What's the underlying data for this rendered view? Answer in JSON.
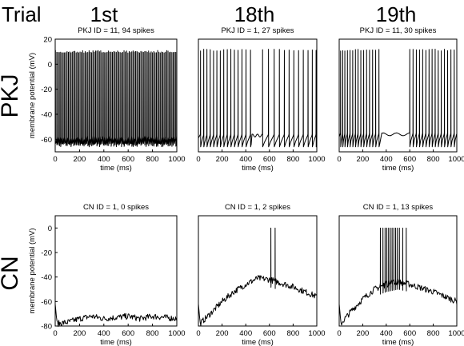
{
  "header": {
    "trial_label": "Trial",
    "columns": [
      "1st",
      "18th",
      "19th"
    ]
  },
  "rows": [
    "PKJ",
    "CN"
  ],
  "axis": {
    "xlabel": "time (ms)",
    "ylabel": "membrane potential (mV)"
  },
  "chart_data": [
    {
      "type": "line",
      "row": "PKJ",
      "column": "1st",
      "title": "PKJ ID = 11, 94 spikes",
      "xlabel": "time (ms)",
      "ylabel": "membrane potential (mV)",
      "xlim": [
        0,
        1000
      ],
      "ylim": [
        -70,
        20
      ],
      "xticks": [
        0,
        200,
        400,
        600,
        800,
        1000
      ],
      "yticks": [
        20,
        0,
        -20,
        -40,
        -60
      ],
      "spike_peak": 11,
      "trough": -66,
      "baseline": -60,
      "spike_count": 94,
      "spike_times": [],
      "pauses": []
    },
    {
      "type": "line",
      "row": "PKJ",
      "column": "18th",
      "title": "PKJ ID = 1, 27 spikes",
      "xlabel": "time (ms)",
      "ylabel": "",
      "xlim": [
        0,
        1000
      ],
      "ylim": [
        -70,
        20
      ],
      "xticks": [
        0,
        200,
        400,
        600,
        800,
        1000
      ],
      "yticks": [],
      "spike_peak": 12,
      "trough": -66,
      "baseline": -59,
      "spike_count": 27,
      "spike_times": [
        18,
        45,
        72,
        100,
        128,
        156,
        185,
        214,
        244,
        274,
        304,
        335,
        368,
        402,
        440,
        542,
        592,
        640,
        684,
        726,
        766,
        806,
        846,
        886,
        926,
        962,
        994
      ],
      "pauses": [
        [
          440,
          542
        ]
      ]
    },
    {
      "type": "line",
      "row": "PKJ",
      "column": "19th",
      "title": "PKJ ID = 11, 30 spikes",
      "xlabel": "time (ms)",
      "ylabel": "",
      "xlim": [
        0,
        1000
      ],
      "ylim": [
        -70,
        20
      ],
      "xticks": [
        0,
        200,
        400,
        600,
        800,
        1000
      ],
      "yticks": [],
      "spike_peak": 12,
      "trough": -66,
      "baseline": -58,
      "spike_count": 30,
      "spike_times": [
        12,
        30,
        48,
        70,
        92,
        115,
        138,
        160,
        184,
        208,
        233,
        258,
        284,
        310,
        338,
        600,
        628,
        656,
        683,
        710,
        737,
        764,
        790,
        816,
        842,
        868,
        895,
        922,
        950,
        978
      ],
      "pauses": [
        [
          338,
          600
        ]
      ]
    },
    {
      "type": "line",
      "row": "CN",
      "column": "1st",
      "title": "CN ID = 1, 0 spikes",
      "xlabel": "time (ms)",
      "ylabel": "membrane potential (mV)",
      "xlim": [
        0,
        1000
      ],
      "ylim": [
        -80,
        10
      ],
      "xticks": [
        0,
        200,
        400,
        600,
        800,
        1000
      ],
      "yticks": [
        0,
        -20,
        -40,
        -60,
        -80
      ],
      "spike_count": 0,
      "spike_times": [],
      "envelope": [
        [
          0,
          -62
        ],
        [
          15,
          -78
        ],
        [
          100,
          -77
        ],
        [
          200,
          -74
        ],
        [
          300,
          -72
        ],
        [
          400,
          -74
        ],
        [
          500,
          -73
        ],
        [
          600,
          -72
        ],
        [
          700,
          -74
        ],
        [
          800,
          -72
        ],
        [
          900,
          -73
        ],
        [
          1000,
          -74
        ]
      ]
    },
    {
      "type": "line",
      "row": "CN",
      "column": "18th",
      "title": "CN ID = 1, 2 spikes",
      "xlabel": "time (ms)",
      "ylabel": "",
      "xlim": [
        0,
        1000
      ],
      "ylim": [
        -80,
        10
      ],
      "xticks": [
        0,
        200,
        400,
        600,
        800,
        1000
      ],
      "yticks": [],
      "spike_count": 2,
      "spike_times": [
        612,
        648
      ],
      "envelope": [
        [
          0,
          -62
        ],
        [
          15,
          -78
        ],
        [
          100,
          -70
        ],
        [
          200,
          -60
        ],
        [
          300,
          -52
        ],
        [
          400,
          -46
        ],
        [
          500,
          -41
        ],
        [
          600,
          -42
        ],
        [
          700,
          -45
        ],
        [
          800,
          -48
        ],
        [
          900,
          -52
        ],
        [
          1000,
          -56
        ]
      ]
    },
    {
      "type": "line",
      "row": "CN",
      "column": "19th",
      "title": "CN ID = 1, 13 spikes",
      "xlabel": "time (ms)",
      "ylabel": "",
      "xlim": [
        0,
        1000
      ],
      "ylim": [
        -80,
        10
      ],
      "xticks": [
        0,
        200,
        400,
        600,
        800,
        1000
      ],
      "yticks": [],
      "spike_count": 13,
      "spike_times": [
        350,
        372,
        390,
        405,
        420,
        435,
        450,
        465,
        480,
        495,
        512,
        540,
        570
      ],
      "envelope": [
        [
          0,
          -62
        ],
        [
          15,
          -78
        ],
        [
          100,
          -68
        ],
        [
          200,
          -58
        ],
        [
          300,
          -50
        ],
        [
          400,
          -46
        ],
        [
          500,
          -44
        ],
        [
          600,
          -46
        ],
        [
          700,
          -49
        ],
        [
          800,
          -52
        ],
        [
          900,
          -56
        ],
        [
          1000,
          -60
        ]
      ]
    }
  ]
}
